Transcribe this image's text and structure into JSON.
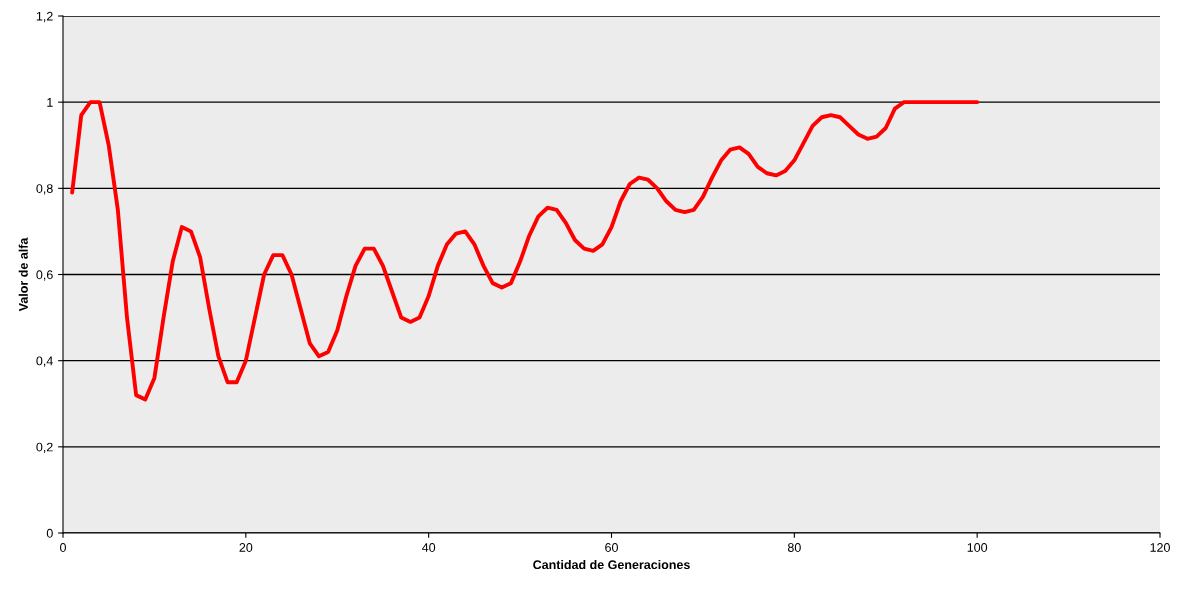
{
  "chart_data": {
    "type": "line",
    "xlabel": "Cantidad de Generaciones",
    "ylabel": "Valor de alfa",
    "x": [
      1,
      2,
      3,
      4,
      5,
      6,
      7,
      8,
      9,
      10,
      11,
      12,
      13,
      14,
      15,
      16,
      17,
      18,
      19,
      20,
      21,
      22,
      23,
      24,
      25,
      26,
      27,
      28,
      29,
      30,
      31,
      32,
      33,
      34,
      35,
      36,
      37,
      38,
      39,
      40,
      41,
      42,
      43,
      44,
      45,
      46,
      47,
      48,
      49,
      50,
      51,
      52,
      53,
      54,
      55,
      56,
      57,
      58,
      59,
      60,
      61,
      62,
      63,
      64,
      65,
      66,
      67,
      68,
      69,
      70,
      71,
      72,
      73,
      74,
      75,
      76,
      77,
      78,
      79,
      80,
      81,
      82,
      83,
      84,
      85,
      86,
      87,
      88,
      89,
      90,
      91,
      92,
      93,
      94,
      95,
      96,
      97,
      98,
      99,
      100
    ],
    "series": [
      {
        "color": "#ff0000",
        "values": [
          0.79,
          0.97,
          1.0,
          1.0,
          0.9,
          0.75,
          0.5,
          0.32,
          0.31,
          0.36,
          0.5,
          0.63,
          0.71,
          0.7,
          0.64,
          0.52,
          0.41,
          0.35,
          0.35,
          0.4,
          0.5,
          0.6,
          0.645,
          0.645,
          0.6,
          0.52,
          0.44,
          0.41,
          0.42,
          0.47,
          0.55,
          0.62,
          0.66,
          0.66,
          0.62,
          0.56,
          0.5,
          0.49,
          0.5,
          0.55,
          0.62,
          0.67,
          0.695,
          0.7,
          0.67,
          0.62,
          0.58,
          0.57,
          0.58,
          0.63,
          0.69,
          0.735,
          0.755,
          0.75,
          0.72,
          0.68,
          0.66,
          0.655,
          0.67,
          0.71,
          0.77,
          0.81,
          0.825,
          0.82,
          0.8,
          0.77,
          0.75,
          0.745,
          0.75,
          0.78,
          0.825,
          0.865,
          0.89,
          0.895,
          0.88,
          0.85,
          0.835,
          0.83,
          0.84,
          0.865,
          0.905,
          0.945,
          0.965,
          0.97,
          0.965,
          0.945,
          0.925,
          0.915,
          0.92,
          0.94,
          0.985,
          1.0,
          1.0,
          1.0,
          1.0,
          1.0,
          1.0,
          1.0,
          1.0,
          1.0
        ]
      }
    ],
    "xlim": [
      0,
      120
    ],
    "xticks": [
      0,
      20,
      40,
      60,
      80,
      100,
      120
    ],
    "ylim": [
      0,
      1.2
    ],
    "yticks": [
      0,
      {
        "value": 0.2,
        "label": "0,2"
      },
      {
        "value": 0.4,
        "label": "0,4"
      },
      {
        "value": 0.6,
        "label": "0,6"
      },
      {
        "value": 0.8,
        "label": "0,8"
      },
      1,
      {
        "value": 1.2,
        "label": "1,2"
      }
    ],
    "grid": "y",
    "line_style": "solid",
    "marker": "none"
  }
}
